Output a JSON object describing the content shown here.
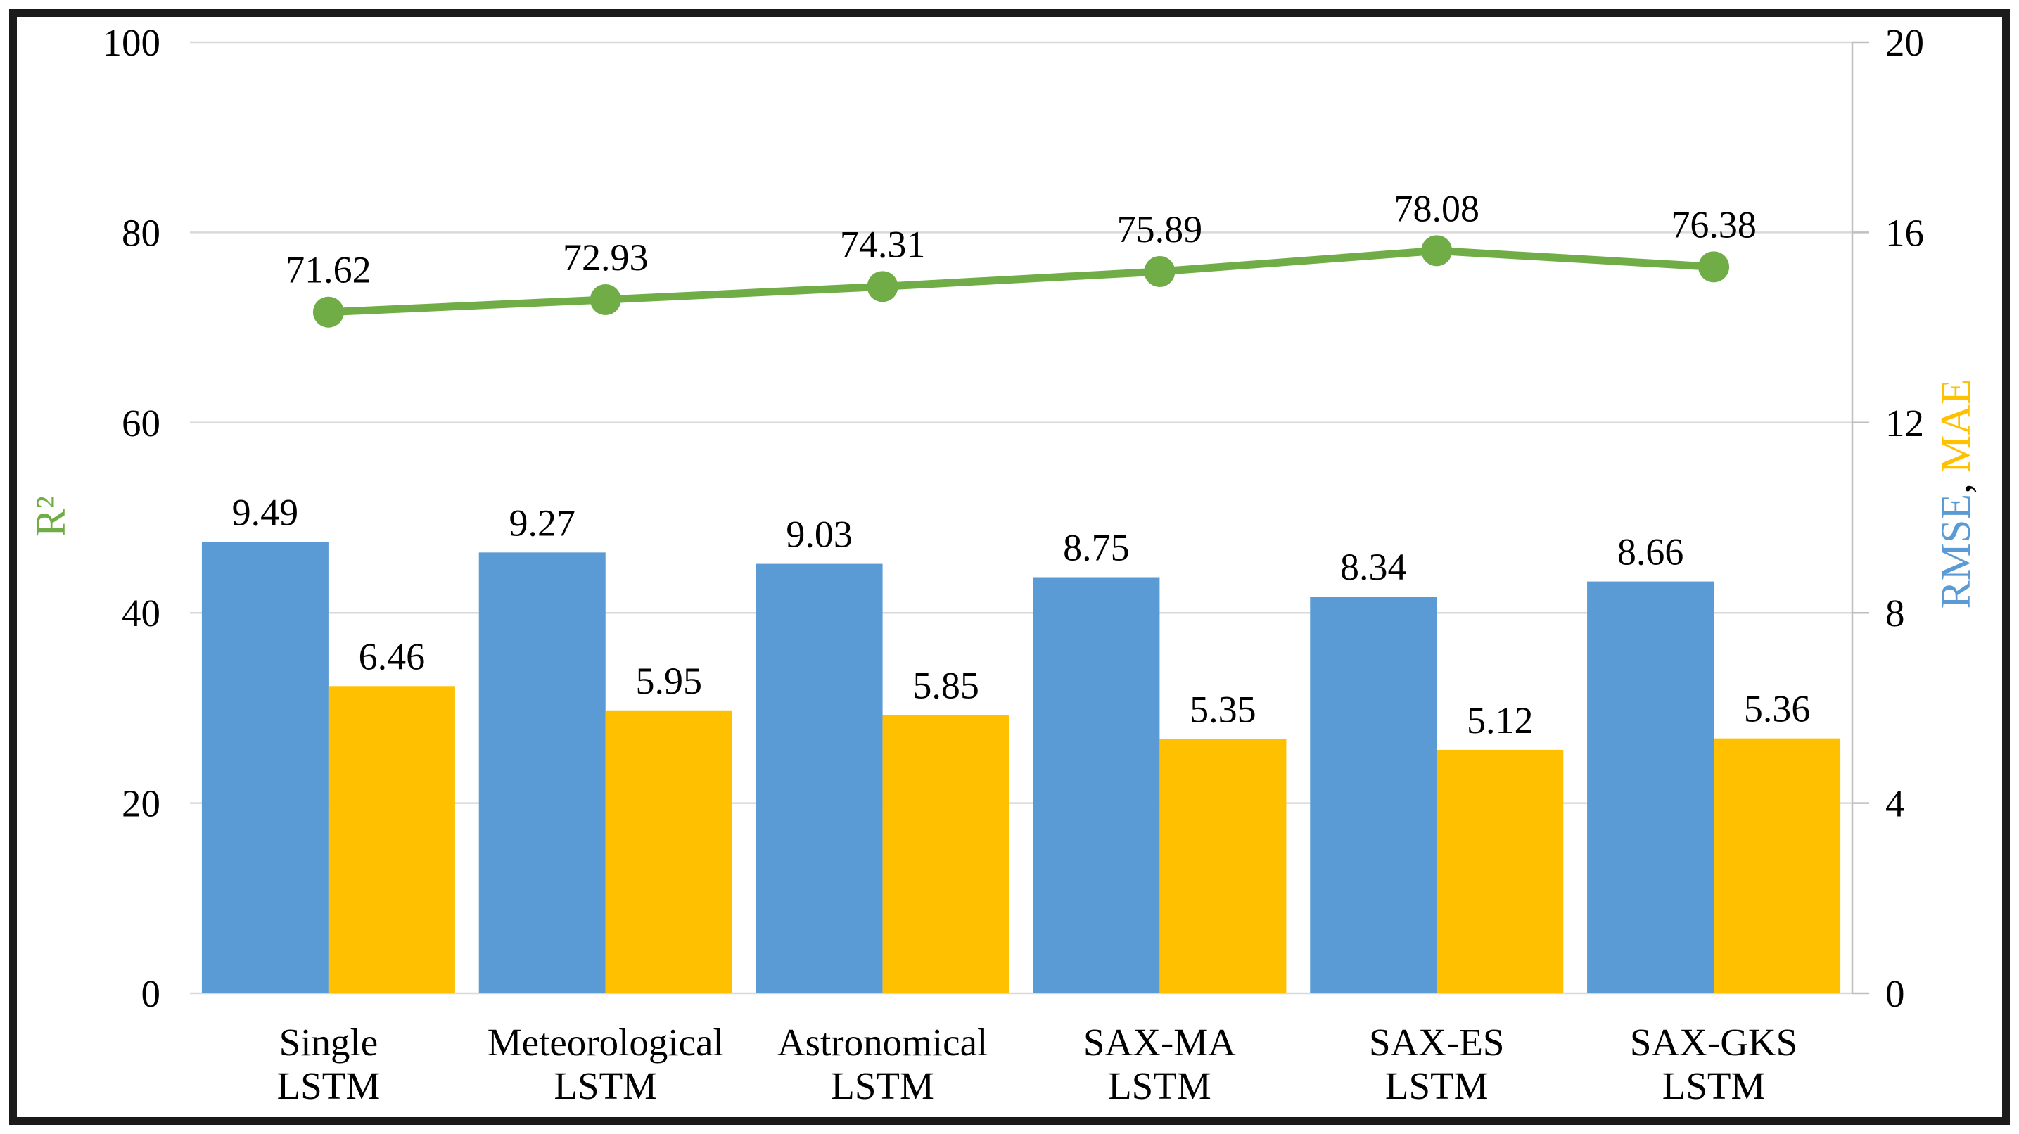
{
  "frame": {
    "border_color": "#1b1b1b",
    "background": "#ffffff"
  },
  "chart_data": {
    "type": "combo-bar-line",
    "title": "",
    "legend": "none",
    "grid": "horizontal",
    "gridline_color": "#D9D9D9",
    "axis_line_color": "#BFBFBF",
    "text_color": "#000000",
    "data_label_decimals": 2,
    "categories": [
      [
        "Single",
        "LSTM"
      ],
      [
        "Meteorological",
        "LSTM"
      ],
      [
        "Astronomical",
        "LSTM"
      ],
      [
        "SAX-MA",
        "LSTM"
      ],
      [
        "SAX-ES",
        "LSTM"
      ],
      [
        "SAX-GKS",
        "LSTM"
      ]
    ],
    "series": [
      {
        "name": "RMSE",
        "type": "bar",
        "axis": "right",
        "color": "#5B9BD5",
        "values": [
          9.49,
          9.27,
          9.03,
          8.75,
          8.34,
          8.66
        ]
      },
      {
        "name": "MAE",
        "type": "bar",
        "axis": "right",
        "color": "#FFC000",
        "values": [
          6.46,
          5.95,
          5.85,
          5.35,
          5.12,
          5.36
        ]
      },
      {
        "name": "R²",
        "type": "line",
        "axis": "left",
        "color": "#70AD47",
        "values": [
          71.62,
          72.93,
          74.31,
          75.89,
          78.08,
          76.38
        ]
      }
    ],
    "left_axis": {
      "title": "R²",
      "title_color": "#70AD47",
      "min": 0,
      "max": 100,
      "ticks": [
        100,
        80,
        60,
        40,
        20,
        0
      ]
    },
    "right_axis": {
      "title_parts": [
        {
          "text": "RMSE",
          "color": "#5B9BD5"
        },
        {
          "text": ",",
          "color": "#000000"
        },
        {
          "text": " MAE",
          "color": "#FFC000"
        }
      ],
      "min": 0,
      "max": 20,
      "ticks": [
        20,
        16,
        12,
        8,
        4,
        0
      ]
    }
  }
}
